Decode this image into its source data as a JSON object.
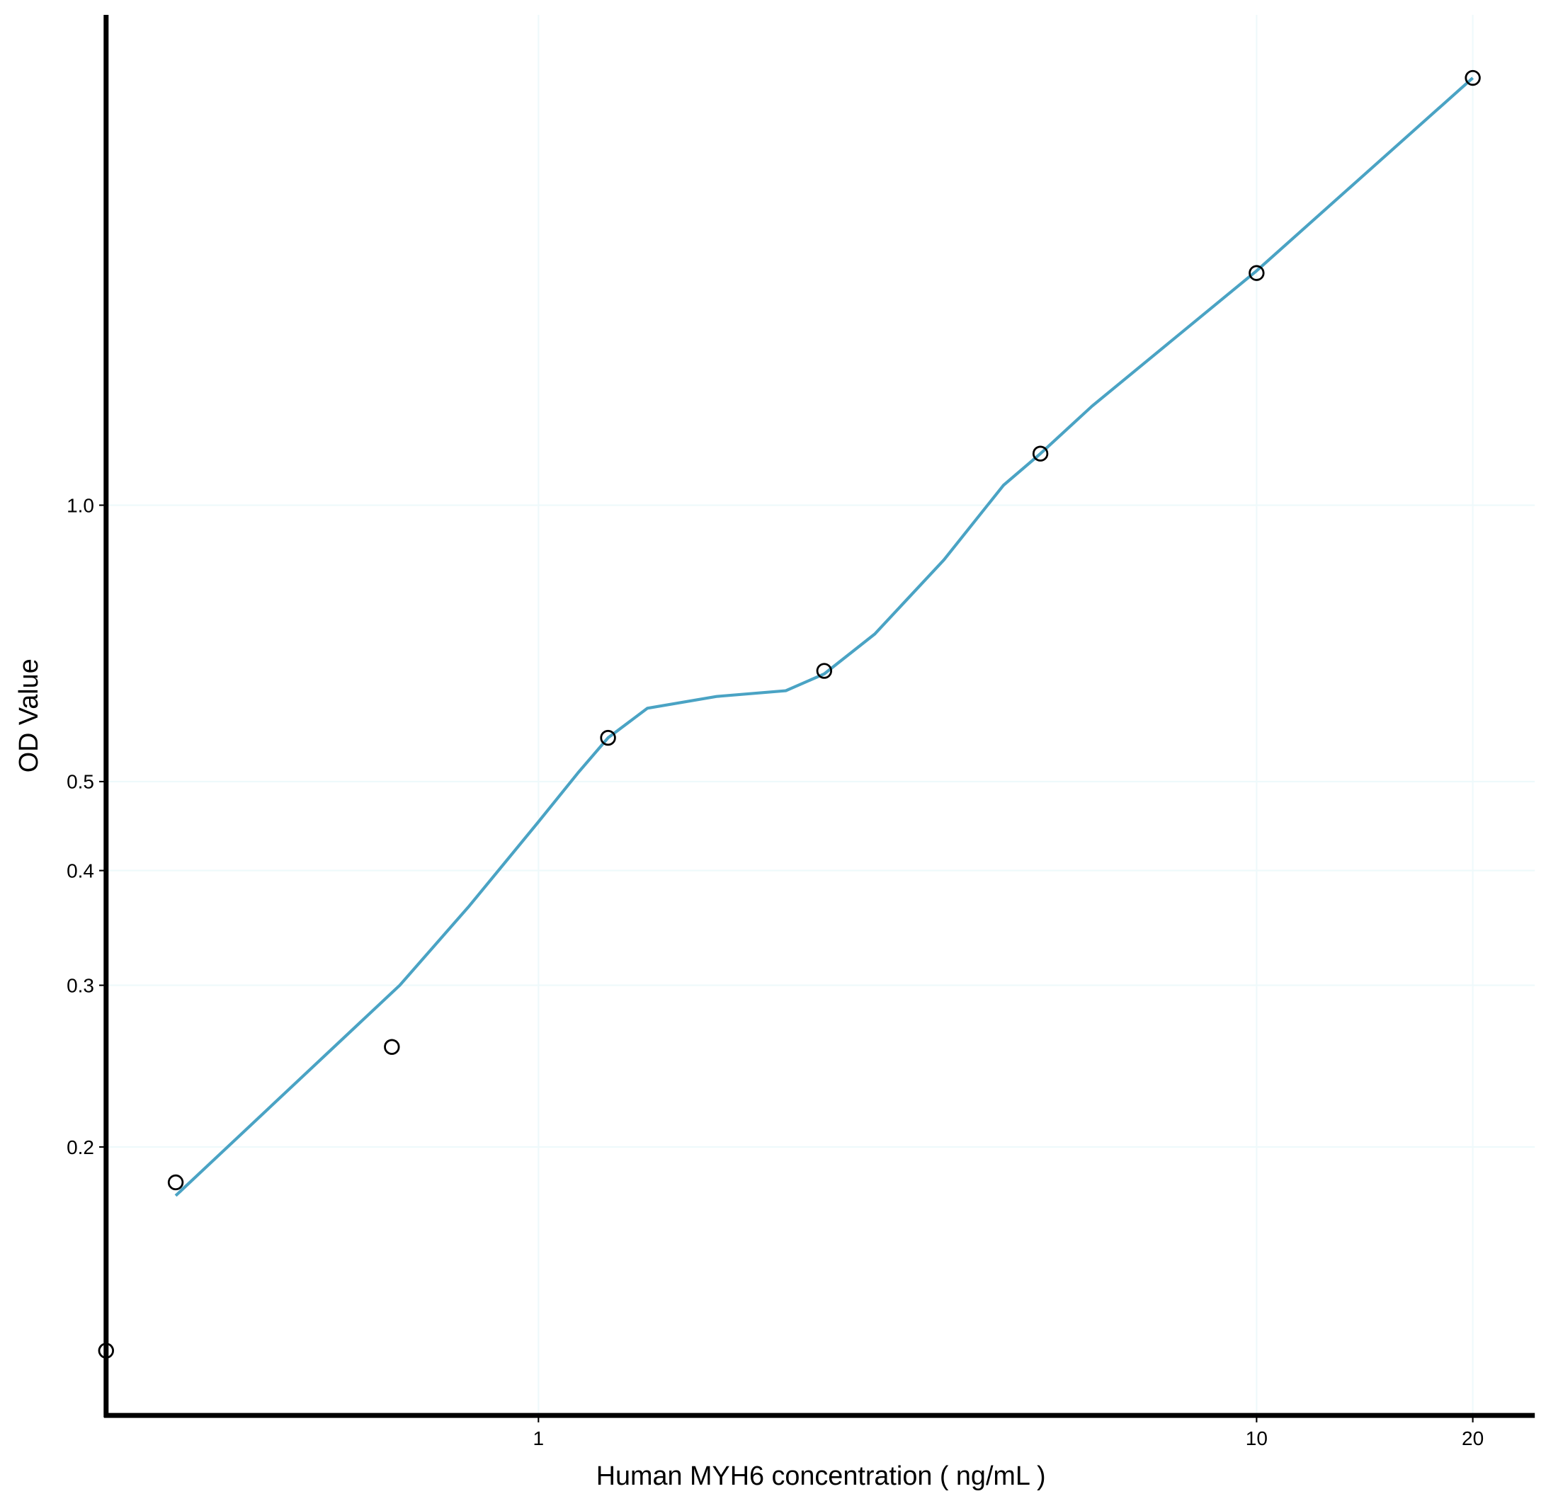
{
  "chart_data": {
    "type": "scatter",
    "x_label": "Human MYH6 concentration ( ng/mL )",
    "y_label": "OD Value",
    "x_scale": "log",
    "y_scale": "log",
    "grid": true,
    "xlim": [
      0.25,
      24.4
    ],
    "ylim": [
      0.102,
      3.42
    ],
    "xticks": [
      1,
      10,
      20
    ],
    "yticks": [
      0.2,
      0.3,
      0.4,
      0.5,
      {
        "value": 1,
        "label": "1.0"
      }
    ],
    "points": {
      "color": "#000000",
      "x": [
        0.25,
        0.3125,
        0.625,
        1.25,
        2.5,
        5,
        10,
        20
      ],
      "y": [
        0.12,
        0.183,
        0.257,
        0.558,
        0.66,
        1.138,
        1.79,
        2.92
      ]
    },
    "curve": {
      "color": "#4aa3c4",
      "x": [
        0.3125,
        0.641,
        0.801,
        1,
        1.135,
        1.25,
        1.418,
        1.77,
        2.21,
        2.5,
        2.94,
        3.67,
        4.44,
        5,
        5.9,
        10,
        20
      ],
      "y": [
        0.177,
        0.3,
        0.366,
        0.452,
        0.511,
        0.558,
        0.601,
        0.619,
        0.628,
        0.655,
        0.724,
        0.872,
        1.051,
        1.138,
        1.282,
        1.8,
        2.92
      ]
    }
  }
}
